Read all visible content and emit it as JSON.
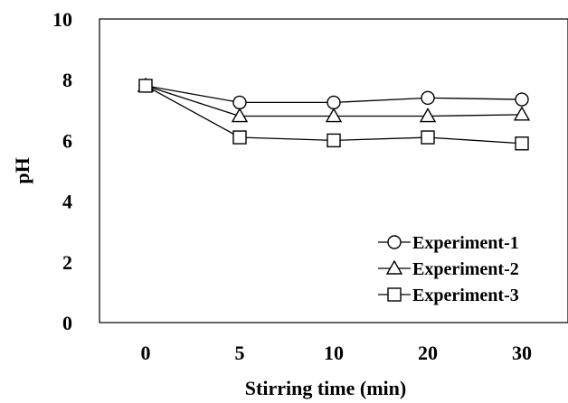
{
  "chart_data": {
    "type": "line",
    "title": "",
    "xlabel": "Stirring time (min)",
    "ylabel": "pH",
    "categories": [
      "0",
      "5",
      "10",
      "20",
      "30"
    ],
    "ylim": [
      0,
      10
    ],
    "yticks": [
      "0",
      "2",
      "4",
      "6",
      "8",
      "10"
    ],
    "grid": false,
    "legend_position": "bottom-right",
    "series": [
      {
        "name": "Experiment-1",
        "marker": "circle",
        "values": [
          7.8,
          7.25,
          7.25,
          7.4,
          7.35
        ]
      },
      {
        "name": "Experiment-2",
        "marker": "triangle",
        "values": [
          7.8,
          6.8,
          6.8,
          6.8,
          6.85
        ]
      },
      {
        "name": "Experiment-3",
        "marker": "square",
        "values": [
          7.8,
          6.1,
          6.0,
          6.1,
          5.9
        ]
      }
    ],
    "colors": {
      "line": "#000000",
      "marker_fill": "#ffffff"
    }
  }
}
